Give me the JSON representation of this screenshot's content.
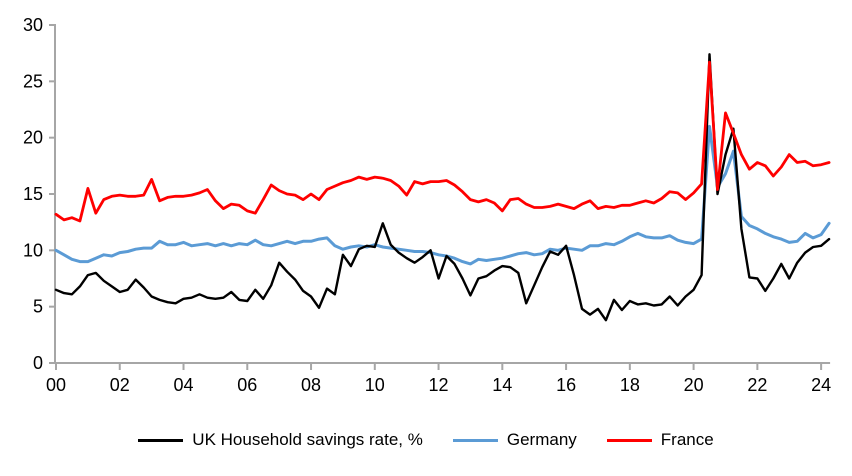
{
  "chart_data": {
    "type": "line",
    "title": "",
    "xlabel": "",
    "ylabel": "",
    "ylim": [
      0,
      30
    ],
    "y_ticks": [
      0,
      5,
      10,
      15,
      20,
      25,
      30
    ],
    "x_tick_labels": [
      "00",
      "02",
      "04",
      "06",
      "08",
      "10",
      "12",
      "14",
      "16",
      "18",
      "20",
      "22",
      "24"
    ],
    "x_start_year": 2000,
    "points_per_year": 4,
    "grid": false,
    "legend_position": "bottom",
    "axis_color": "#a6a6a6",
    "label_color": "#000000",
    "series": [
      {
        "name": "UK Household savings rate, %",
        "color": "#000000",
        "line_width": 2.4,
        "values": [
          6.5,
          6.2,
          6.1,
          6.8,
          7.8,
          8.0,
          7.3,
          6.8,
          6.3,
          6.5,
          7.4,
          6.7,
          5.9,
          5.6,
          5.4,
          5.3,
          5.7,
          5.8,
          6.1,
          5.8,
          5.7,
          5.8,
          6.3,
          5.6,
          5.5,
          6.5,
          5.7,
          6.9,
          8.9,
          8.1,
          7.4,
          6.4,
          5.9,
          4.9,
          6.6,
          6.1,
          9.6,
          8.6,
          10.1,
          10.4,
          10.3,
          12.4,
          10.5,
          9.8,
          9.3,
          8.9,
          9.4,
          10.0,
          7.5,
          9.5,
          8.8,
          7.5,
          6.0,
          7.5,
          7.7,
          8.2,
          8.6,
          8.5,
          8.0,
          5.3,
          6.9,
          8.5,
          9.9,
          9.6,
          10.4,
          7.8,
          4.8,
          4.3,
          4.8,
          3.8,
          5.6,
          4.7,
          5.5,
          5.2,
          5.3,
          5.1,
          5.2,
          5.9,
          5.1,
          5.9,
          6.5,
          7.8,
          27.4,
          15.0,
          18.5,
          20.8,
          11.9,
          7.6,
          7.5,
          6.4,
          7.5,
          8.8,
          7.5,
          8.9,
          9.8,
          10.3,
          10.4,
          11.0
        ]
      },
      {
        "name": "Germany",
        "color": "#5b9bd5",
        "line_width": 3.0,
        "values": [
          10.0,
          9.6,
          9.2,
          9.0,
          9.0,
          9.3,
          9.6,
          9.5,
          9.8,
          9.9,
          10.1,
          10.2,
          10.2,
          10.8,
          10.5,
          10.5,
          10.7,
          10.4,
          10.5,
          10.6,
          10.4,
          10.6,
          10.4,
          10.6,
          10.5,
          10.9,
          10.5,
          10.4,
          10.6,
          10.8,
          10.6,
          10.8,
          10.8,
          11.0,
          11.1,
          10.4,
          10.1,
          10.3,
          10.4,
          10.3,
          10.5,
          10.3,
          10.2,
          10.1,
          10.0,
          9.9,
          9.9,
          9.8,
          9.6,
          9.5,
          9.3,
          9.0,
          8.8,
          9.2,
          9.1,
          9.2,
          9.3,
          9.5,
          9.7,
          9.8,
          9.6,
          9.7,
          10.1,
          10.0,
          10.2,
          10.1,
          10.0,
          10.4,
          10.4,
          10.6,
          10.5,
          10.8,
          11.2,
          11.5,
          11.2,
          11.1,
          11.1,
          11.3,
          10.9,
          10.7,
          10.6,
          11.0,
          21.0,
          15.6,
          16.8,
          18.8,
          13.0,
          12.2,
          11.9,
          11.5,
          11.2,
          11.0,
          10.7,
          10.8,
          11.5,
          11.1,
          11.4,
          12.4
        ]
      },
      {
        "name": "France",
        "color": "#ff0000",
        "line_width": 2.8,
        "values": [
          13.2,
          12.7,
          12.9,
          12.6,
          15.5,
          13.3,
          14.5,
          14.8,
          14.9,
          14.8,
          14.8,
          14.9,
          16.3,
          14.4,
          14.7,
          14.8,
          14.8,
          14.9,
          15.1,
          15.4,
          14.4,
          13.7,
          14.1,
          14.0,
          13.5,
          13.3,
          14.5,
          15.8,
          15.3,
          15.0,
          14.9,
          14.5,
          15.0,
          14.5,
          15.4,
          15.7,
          16.0,
          16.2,
          16.5,
          16.3,
          16.5,
          16.4,
          16.2,
          15.7,
          14.9,
          16.1,
          15.9,
          16.1,
          16.1,
          16.2,
          15.8,
          15.2,
          14.5,
          14.3,
          14.5,
          14.2,
          13.5,
          14.5,
          14.6,
          14.1,
          13.8,
          13.8,
          13.9,
          14.1,
          13.9,
          13.7,
          14.1,
          14.4,
          13.7,
          13.9,
          13.8,
          14.0,
          14.0,
          14.2,
          14.4,
          14.2,
          14.6,
          15.2,
          15.1,
          14.5,
          15.1,
          15.9,
          26.7,
          15.4,
          22.2,
          20.4,
          18.5,
          17.2,
          17.8,
          17.5,
          16.6,
          17.4,
          18.5,
          17.8,
          17.9,
          17.5,
          17.6,
          17.8
        ]
      }
    ]
  },
  "legend": {
    "uk_label": "UK Household savings rate, %",
    "germany_label": "Germany",
    "france_label": "France"
  }
}
